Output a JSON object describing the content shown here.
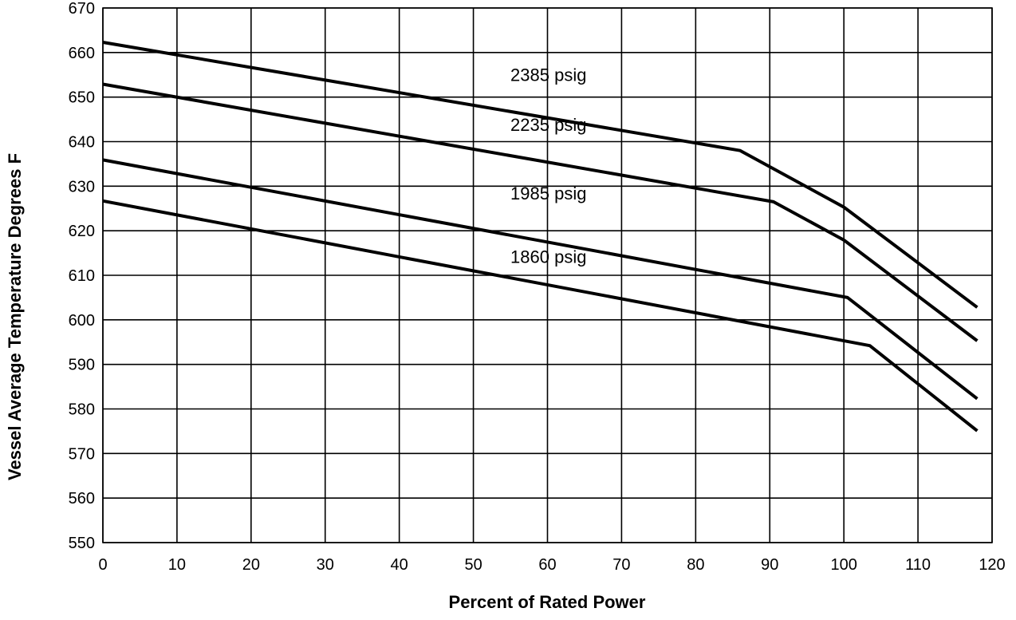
{
  "chart_data": {
    "type": "line",
    "title": "",
    "xlabel": "Percent of Rated Power",
    "ylabel": "Vessel Average Temperature Degrees F",
    "xlim": [
      0,
      120
    ],
    "ylim": [
      550,
      670
    ],
    "x_ticks": [
      "0",
      "10",
      "20",
      "30",
      "40",
      "50",
      "60",
      "70",
      "80",
      "90",
      "100",
      "110",
      "120"
    ],
    "y_ticks": [
      "550",
      "560",
      "570",
      "580",
      "590",
      "600",
      "610",
      "620",
      "630",
      "640",
      "650",
      "660",
      "670"
    ],
    "x_tick_values": [
      0,
      10,
      20,
      30,
      40,
      50,
      60,
      70,
      80,
      90,
      100,
      110,
      120
    ],
    "y_tick_values": [
      550,
      560,
      570,
      580,
      590,
      600,
      610,
      620,
      630,
      640,
      650,
      660,
      670
    ],
    "grid": true,
    "legend": "none",
    "line_color": "#000000",
    "series": [
      {
        "name": "2385 psig",
        "x": [
          0,
          86,
          100,
          118
        ],
        "y": [
          662.3,
          638.0,
          625.3,
          602.8
        ],
        "label_at": [
          55,
          653.6
        ]
      },
      {
        "name": "2235 psig",
        "x": [
          0,
          90.5,
          100,
          118
        ],
        "y": [
          652.9,
          626.5,
          617.9,
          595.3
        ],
        "label_at": [
          55,
          642.4
        ]
      },
      {
        "name": "1985 psig",
        "x": [
          0,
          100.5,
          118
        ],
        "y": [
          635.9,
          605.0,
          582.3
        ],
        "label_at": [
          55,
          627.0
        ]
      },
      {
        "name": "1860 psig",
        "x": [
          0,
          103.5,
          118
        ],
        "y": [
          626.7,
          594.2,
          575.1
        ],
        "label_at": [
          55,
          612.8
        ]
      }
    ]
  }
}
